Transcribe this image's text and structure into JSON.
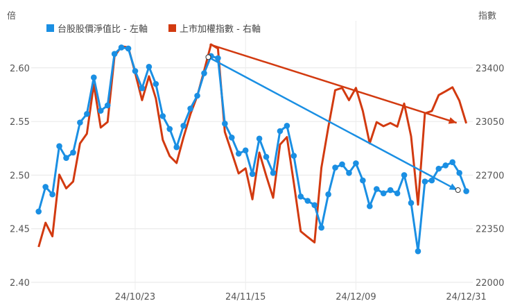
{
  "chart_data": {
    "type": "line",
    "left_axis_unit": "倍",
    "right_axis_unit": "指數",
    "left_ylim": [
      2.4,
      2.65
    ],
    "left_ticks": [
      "2.40",
      "2.45",
      "2.50",
      "2.55",
      "2.60"
    ],
    "right_ylim": [
      22000,
      23750
    ],
    "right_ticks": [
      "22000",
      "22350",
      "22700",
      "23050",
      "23400"
    ],
    "x_tick_labels": [
      {
        "index": 14,
        "label": "24/10/23"
      },
      {
        "index": 30,
        "label": "24/11/15"
      },
      {
        "index": 46,
        "label": "24/12/09"
      },
      {
        "index": 62,
        "label": "24/12/31"
      }
    ],
    "grid": true,
    "legend_placement": "top-left",
    "series": [
      {
        "name": "台股股價淨值比 - 左軸",
        "axis": "left",
        "color": "#1a8fe3",
        "markers": true,
        "values": [
          2.466,
          2.489,
          2.482,
          2.527,
          2.516,
          2.521,
          2.549,
          2.557,
          2.591,
          2.56,
          2.565,
          2.613,
          2.619,
          2.618,
          2.597,
          2.581,
          2.601,
          2.585,
          2.555,
          2.543,
          2.526,
          2.546,
          2.562,
          2.574,
          2.595,
          2.611,
          2.609,
          2.548,
          2.535,
          2.52,
          2.523,
          2.501,
          2.534,
          2.517,
          2.502,
          2.541,
          2.546,
          2.518,
          2.48,
          2.476,
          2.472,
          2.451,
          2.482,
          2.507,
          2.51,
          2.502,
          2.511,
          2.495,
          2.471,
          2.487,
          2.483,
          2.486,
          2.483,
          2.5,
          2.474,
          2.429,
          2.494,
          2.495,
          2.506,
          2.509,
          2.512,
          2.502,
          2.485
        ]
      },
      {
        "name": "上市加權指數 - 右軸",
        "axis": "right",
        "color": "#d23a10",
        "markers": false,
        "values": [
          22231,
          22389,
          22300,
          22703,
          22613,
          22658,
          22907,
          22970,
          23292,
          23010,
          23047,
          23473,
          23541,
          23534,
          23367,
          23189,
          23345,
          23201,
          22930,
          22824,
          22779,
          22945,
          23096,
          23217,
          23382,
          23553,
          23526,
          22982,
          22847,
          22711,
          22744,
          22542,
          22847,
          22696,
          22552,
          22899,
          22948,
          22650,
          22333,
          22296,
          22261,
          22748,
          23012,
          23254,
          23269,
          23189,
          23269,
          23118,
          22907,
          23046,
          23019,
          23040,
          23016,
          23167,
          22953,
          22507,
          23103,
          23118,
          23222,
          23247,
          23273,
          23186,
          23038
        ]
      }
    ],
    "annotations": [
      {
        "type": "trend-arrow",
        "axis": "left",
        "color": "#1a8fe3",
        "from": {
          "index": 24.6,
          "value": 2.61
        },
        "to": {
          "index": 60.7,
          "value": 2.486
        }
      },
      {
        "type": "trend-arrow",
        "axis": "right",
        "color": "#d23a10",
        "from": {
          "index": 24.8,
          "value": 23553
        },
        "to": {
          "index": 60.6,
          "value": 23041
        }
      }
    ]
  }
}
